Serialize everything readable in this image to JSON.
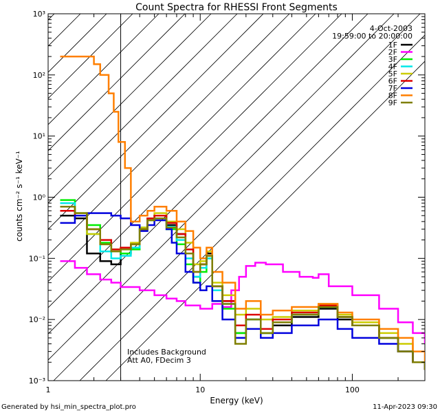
{
  "chart_data": {
    "type": "line",
    "title": "Count Spectra for RHESSI Front Segments",
    "xlabel": "Energy (keV)",
    "ylabel": "counts cm⁻² s⁻¹ keV⁻¹",
    "xscale": "log",
    "yscale": "log",
    "xlim": [
      1,
      300
    ],
    "ylim": [
      0.001,
      1000
    ],
    "xticks": [
      {
        "value": 1,
        "label": "1"
      },
      {
        "value": 10,
        "label": "10"
      },
      {
        "value": 100,
        "label": "100"
      }
    ],
    "yticks": [
      {
        "value": 0.001,
        "label": "10⁻³"
      },
      {
        "value": 0.01,
        "label": "10⁻²"
      },
      {
        "value": 0.1,
        "label": "10⁻¹"
      },
      {
        "value": 1,
        "label": "10⁰"
      },
      {
        "value": 10,
        "label": "10¹"
      },
      {
        "value": 100,
        "label": "10²"
      },
      {
        "value": 1000,
        "label": "10³"
      }
    ],
    "date": "4-Oct-2003",
    "time_range": "19:59:00 to 20:00:00",
    "annotations": [
      "Includes Background",
      "Att A0, FDecim 3"
    ],
    "hatched_below_kev": 3,
    "series": [
      {
        "name": "1F",
        "color": "#000000",
        "points": [
          [
            1.2,
            0.5
          ],
          [
            1.5,
            0.45
          ],
          [
            1.8,
            0.12
          ],
          [
            2.2,
            0.09
          ],
          [
            2.6,
            0.08
          ],
          [
            3,
            0.12
          ],
          [
            3.5,
            0.15
          ],
          [
            4,
            0.3
          ],
          [
            4.5,
            0.45
          ],
          [
            5,
            0.5
          ],
          [
            6,
            0.35
          ],
          [
            7,
            0.25
          ],
          [
            8,
            0.12
          ],
          [
            9,
            0.05
          ],
          [
            10,
            0.08
          ],
          [
            11,
            0.12
          ],
          [
            12,
            0.035
          ],
          [
            14,
            0.02
          ],
          [
            17,
            0.006
          ],
          [
            20,
            0.01
          ],
          [
            25,
            0.006
          ],
          [
            30,
            0.008
          ],
          [
            40,
            0.011
          ],
          [
            60,
            0.015
          ],
          [
            80,
            0.01
          ],
          [
            100,
            0.008
          ],
          [
            150,
            0.005
          ],
          [
            200,
            0.003
          ],
          [
            250,
            0.002
          ],
          [
            300,
            0.0015
          ]
        ]
      },
      {
        "name": "2F",
        "color": "#ff00ff",
        "points": [
          [
            1.2,
            0.09
          ],
          [
            1.5,
            0.07
          ],
          [
            1.8,
            0.055
          ],
          [
            2.2,
            0.045
          ],
          [
            2.6,
            0.04
          ],
          [
            3,
            0.034
          ],
          [
            4,
            0.03
          ],
          [
            5,
            0.025
          ],
          [
            6,
            0.022
          ],
          [
            7,
            0.02
          ],
          [
            8,
            0.017
          ],
          [
            10,
            0.015
          ],
          [
            12,
            0.018
          ],
          [
            14,
            0.016
          ],
          [
            16,
            0.03
          ],
          [
            18,
            0.05
          ],
          [
            20,
            0.075
          ],
          [
            23,
            0.085
          ],
          [
            27,
            0.08
          ],
          [
            35,
            0.06
          ],
          [
            45,
            0.05
          ],
          [
            55,
            0.048
          ],
          [
            60,
            0.055
          ],
          [
            70,
            0.035
          ],
          [
            100,
            0.025
          ],
          [
            150,
            0.015
          ],
          [
            200,
            0.009
          ],
          [
            250,
            0.006
          ],
          [
            300,
            0.004
          ]
        ]
      },
      {
        "name": "3F",
        "color": "#00ee00",
        "points": [
          [
            1.2,
            0.9
          ],
          [
            1.5,
            0.55
          ],
          [
            1.8,
            0.35
          ],
          [
            2.2,
            0.18
          ],
          [
            2.6,
            0.14
          ],
          [
            3,
            0.12
          ],
          [
            3.5,
            0.14
          ],
          [
            4,
            0.3
          ],
          [
            4.5,
            0.42
          ],
          [
            5,
            0.45
          ],
          [
            6,
            0.3
          ],
          [
            7,
            0.17
          ],
          [
            8,
            0.08
          ],
          [
            9,
            0.04
          ],
          [
            10,
            0.06
          ],
          [
            11,
            0.1
          ],
          [
            12,
            0.03
          ],
          [
            14,
            0.015
          ],
          [
            17,
            0.006
          ],
          [
            20,
            0.01
          ],
          [
            25,
            0.006
          ],
          [
            30,
            0.009
          ],
          [
            40,
            0.012
          ],
          [
            60,
            0.016
          ],
          [
            80,
            0.011
          ],
          [
            100,
            0.008
          ],
          [
            150,
            0.005
          ],
          [
            200,
            0.003
          ],
          [
            250,
            0.002
          ],
          [
            300,
            0.0015
          ]
        ]
      },
      {
        "name": "4F",
        "color": "#00e8e8",
        "points": [
          [
            1.2,
            0.8
          ],
          [
            1.5,
            0.5
          ],
          [
            1.8,
            0.25
          ],
          [
            2.2,
            0.13
          ],
          [
            2.6,
            0.1
          ],
          [
            3,
            0.11
          ],
          [
            3.5,
            0.15
          ],
          [
            4,
            0.32
          ],
          [
            4.5,
            0.45
          ],
          [
            5,
            0.5
          ],
          [
            6,
            0.33
          ],
          [
            7,
            0.2
          ],
          [
            8,
            0.1
          ],
          [
            9,
            0.05
          ],
          [
            10,
            0.07
          ],
          [
            11,
            0.1
          ],
          [
            12,
            0.03
          ],
          [
            14,
            0.018
          ],
          [
            17,
            0.005
          ],
          [
            20,
            0.01
          ],
          [
            25,
            0.006
          ],
          [
            30,
            0.009
          ],
          [
            40,
            0.012
          ],
          [
            60,
            0.016
          ],
          [
            80,
            0.011
          ],
          [
            100,
            0.008
          ],
          [
            150,
            0.005
          ],
          [
            200,
            0.003
          ],
          [
            250,
            0.002
          ],
          [
            300,
            0.0015
          ]
        ]
      },
      {
        "name": "5F",
        "color": "#cccc00",
        "points": [
          [
            1.2,
            0.7
          ],
          [
            1.5,
            0.55
          ],
          [
            1.8,
            0.25
          ],
          [
            2.2,
            0.17
          ],
          [
            2.6,
            0.14
          ],
          [
            3,
            0.15
          ],
          [
            3.5,
            0.18
          ],
          [
            4,
            0.32
          ],
          [
            4.5,
            0.45
          ],
          [
            5,
            0.55
          ],
          [
            6,
            0.4
          ],
          [
            7,
            0.3
          ],
          [
            8,
            0.18
          ],
          [
            9,
            0.08
          ],
          [
            10,
            0.09
          ],
          [
            11,
            0.13
          ],
          [
            12,
            0.04
          ],
          [
            14,
            0.025
          ],
          [
            17,
            0.012
          ],
          [
            20,
            0.015
          ],
          [
            25,
            0.01
          ],
          [
            30,
            0.011
          ],
          [
            40,
            0.014
          ],
          [
            60,
            0.018
          ],
          [
            80,
            0.012
          ],
          [
            100,
            0.009
          ],
          [
            150,
            0.006
          ],
          [
            200,
            0.004
          ],
          [
            250,
            0.002
          ],
          [
            300,
            0.0016
          ]
        ]
      },
      {
        "name": "6F",
        "color": "#dd0000",
        "points": [
          [
            1.2,
            0.6
          ],
          [
            1.5,
            0.5
          ],
          [
            1.8,
            0.3
          ],
          [
            2.2,
            0.2
          ],
          [
            2.6,
            0.14
          ],
          [
            3,
            0.15
          ],
          [
            3.5,
            0.17
          ],
          [
            4,
            0.3
          ],
          [
            4.5,
            0.45
          ],
          [
            5,
            0.5
          ],
          [
            6,
            0.38
          ],
          [
            7,
            0.25
          ],
          [
            8,
            0.14
          ],
          [
            9,
            0.06
          ],
          [
            10,
            0.08
          ],
          [
            11,
            0.11
          ],
          [
            12,
            0.035
          ],
          [
            14,
            0.02
          ],
          [
            17,
            0.008
          ],
          [
            20,
            0.012
          ],
          [
            25,
            0.007
          ],
          [
            30,
            0.01
          ],
          [
            40,
            0.013
          ],
          [
            60,
            0.017
          ],
          [
            80,
            0.011
          ],
          [
            100,
            0.008
          ],
          [
            150,
            0.005
          ],
          [
            200,
            0.003
          ],
          [
            250,
            0.002
          ],
          [
            300,
            0.0015
          ]
        ]
      },
      {
        "name": "7F",
        "color": "#0000dd",
        "points": [
          [
            1.2,
            0.38
          ],
          [
            1.5,
            0.5
          ],
          [
            1.8,
            0.55
          ],
          [
            2.2,
            0.55
          ],
          [
            2.6,
            0.5
          ],
          [
            3,
            0.45
          ],
          [
            3.5,
            0.35
          ],
          [
            4,
            0.28
          ],
          [
            4.5,
            0.35
          ],
          [
            5,
            0.42
          ],
          [
            6,
            0.3
          ],
          [
            6.5,
            0.18
          ],
          [
            7,
            0.12
          ],
          [
            8,
            0.06
          ],
          [
            9,
            0.04
          ],
          [
            10,
            0.03
          ],
          [
            11,
            0.035
          ],
          [
            12,
            0.02
          ],
          [
            14,
            0.01
          ],
          [
            17,
            0.005
          ],
          [
            20,
            0.007
          ],
          [
            25,
            0.005
          ],
          [
            30,
            0.006
          ],
          [
            40,
            0.008
          ],
          [
            60,
            0.01
          ],
          [
            80,
            0.007
          ],
          [
            100,
            0.005
          ],
          [
            150,
            0.004
          ],
          [
            200,
            0.003
          ],
          [
            250,
            0.002
          ],
          [
            300,
            0.0015
          ]
        ]
      },
      {
        "name": "8F",
        "color": "#ff7f00",
        "points": [
          [
            1.2,
            200
          ],
          [
            1.5,
            200
          ],
          [
            1.8,
            200
          ],
          [
            2,
            150
          ],
          [
            2.2,
            100
          ],
          [
            2.5,
            50
          ],
          [
            2.7,
            25
          ],
          [
            2.9,
            8
          ],
          [
            3,
            8
          ],
          [
            3.2,
            3
          ],
          [
            3.5,
            0.4
          ],
          [
            4,
            0.5
          ],
          [
            4.5,
            0.6
          ],
          [
            5,
            0.7
          ],
          [
            5.5,
            0.7
          ],
          [
            6,
            0.6
          ],
          [
            7,
            0.4
          ],
          [
            8,
            0.28
          ],
          [
            9,
            0.15
          ],
          [
            10,
            0.1
          ],
          [
            11,
            0.15
          ],
          [
            12,
            0.06
          ],
          [
            14,
            0.04
          ],
          [
            17,
            0.015
          ],
          [
            20,
            0.02
          ],
          [
            25,
            0.012
          ],
          [
            30,
            0.014
          ],
          [
            40,
            0.016
          ],
          [
            60,
            0.018
          ],
          [
            80,
            0.013
          ],
          [
            100,
            0.01
          ],
          [
            150,
            0.007
          ],
          [
            200,
            0.005
          ],
          [
            250,
            0.003
          ],
          [
            300,
            0.002
          ]
        ]
      },
      {
        "name": "9F",
        "color": "#7f7f00",
        "points": [
          [
            1.2,
            0.7
          ],
          [
            1.5,
            0.55
          ],
          [
            1.8,
            0.3
          ],
          [
            2.2,
            0.17
          ],
          [
            2.6,
            0.13
          ],
          [
            3,
            0.14
          ],
          [
            3.5,
            0.17
          ],
          [
            4,
            0.3
          ],
          [
            4.5,
            0.42
          ],
          [
            5,
            0.45
          ],
          [
            6,
            0.32
          ],
          [
            7,
            0.22
          ],
          [
            8,
            0.12
          ],
          [
            9,
            0.06
          ],
          [
            10,
            0.08
          ],
          [
            11,
            0.11
          ],
          [
            12,
            0.035
          ],
          [
            14,
            0.018
          ],
          [
            17,
            0.004
          ],
          [
            20,
            0.01
          ],
          [
            25,
            0.006
          ],
          [
            30,
            0.009
          ],
          [
            40,
            0.012
          ],
          [
            60,
            0.016
          ],
          [
            80,
            0.011
          ],
          [
            100,
            0.008
          ],
          [
            150,
            0.005
          ],
          [
            200,
            0.003
          ],
          [
            250,
            0.002
          ],
          [
            300,
            0.0015
          ]
        ]
      }
    ]
  },
  "footer": {
    "left": "Generated by hsi_min_spectra_plot.pro",
    "right": "11-Apr-2023 09:30"
  }
}
